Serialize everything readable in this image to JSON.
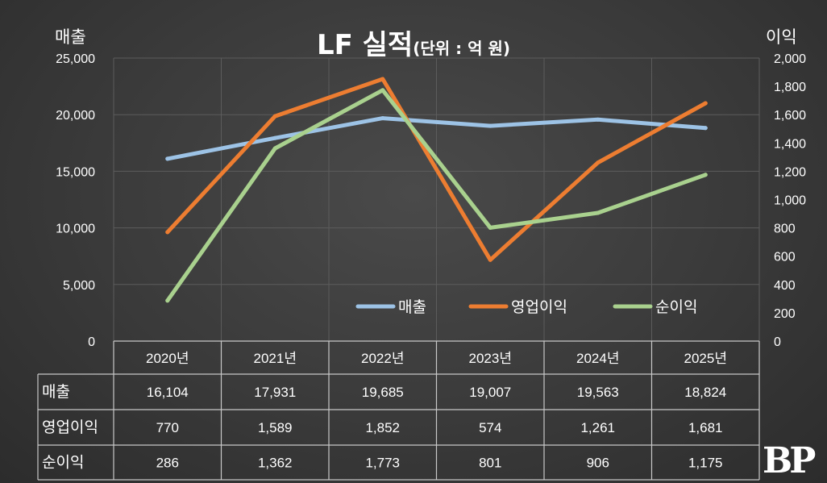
{
  "chart_data": {
    "type": "line",
    "title": "LF 실적",
    "subtitle": "(단위 : 억 원)",
    "y_left_label": "매출",
    "y_right_label": "이익",
    "categories": [
      "2020년",
      "2021년",
      "2022년",
      "2023년",
      "2024년",
      "2025년"
    ],
    "y_left_range": [
      0,
      25000
    ],
    "y_left_ticks": [
      "0",
      "5,000",
      "10,000",
      "15,000",
      "20,000",
      "25,000"
    ],
    "y_right_range": [
      0,
      2000
    ],
    "y_right_ticks": [
      "0",
      "200",
      "400",
      "600",
      "800",
      "1,000",
      "1,200",
      "1,400",
      "1,600",
      "1,800",
      "2,000"
    ],
    "grid": true,
    "legend_position": "bottom-right",
    "series": [
      {
        "name": "매출",
        "axis": "left",
        "color": "#9dc3e6",
        "values": [
          16104,
          17931,
          19685,
          19007,
          19563,
          18824
        ]
      },
      {
        "name": "영업이익",
        "axis": "right",
        "color": "#ed7d31",
        "values": [
          770,
          1589,
          1852,
          574,
          1261,
          1681
        ]
      },
      {
        "name": "순이익",
        "axis": "right",
        "color": "#a9d18e",
        "values": [
          286,
          1362,
          1773,
          801,
          906,
          1175
        ]
      }
    ],
    "table": {
      "rows": [
        {
          "label": "매출",
          "cells": [
            "16,104",
            "17,931",
            "19,685",
            "19,007",
            "19,563",
            "18,824"
          ]
        },
        {
          "label": "영업이익",
          "cells": [
            "770",
            "1,589",
            "1,852",
            "574",
            "1,261",
            "1,681"
          ]
        },
        {
          "label": "순이익",
          "cells": [
            "286",
            "1,362",
            "1,773",
            "801",
            "906",
            "1,175"
          ]
        }
      ]
    }
  },
  "logo_text": "BP"
}
